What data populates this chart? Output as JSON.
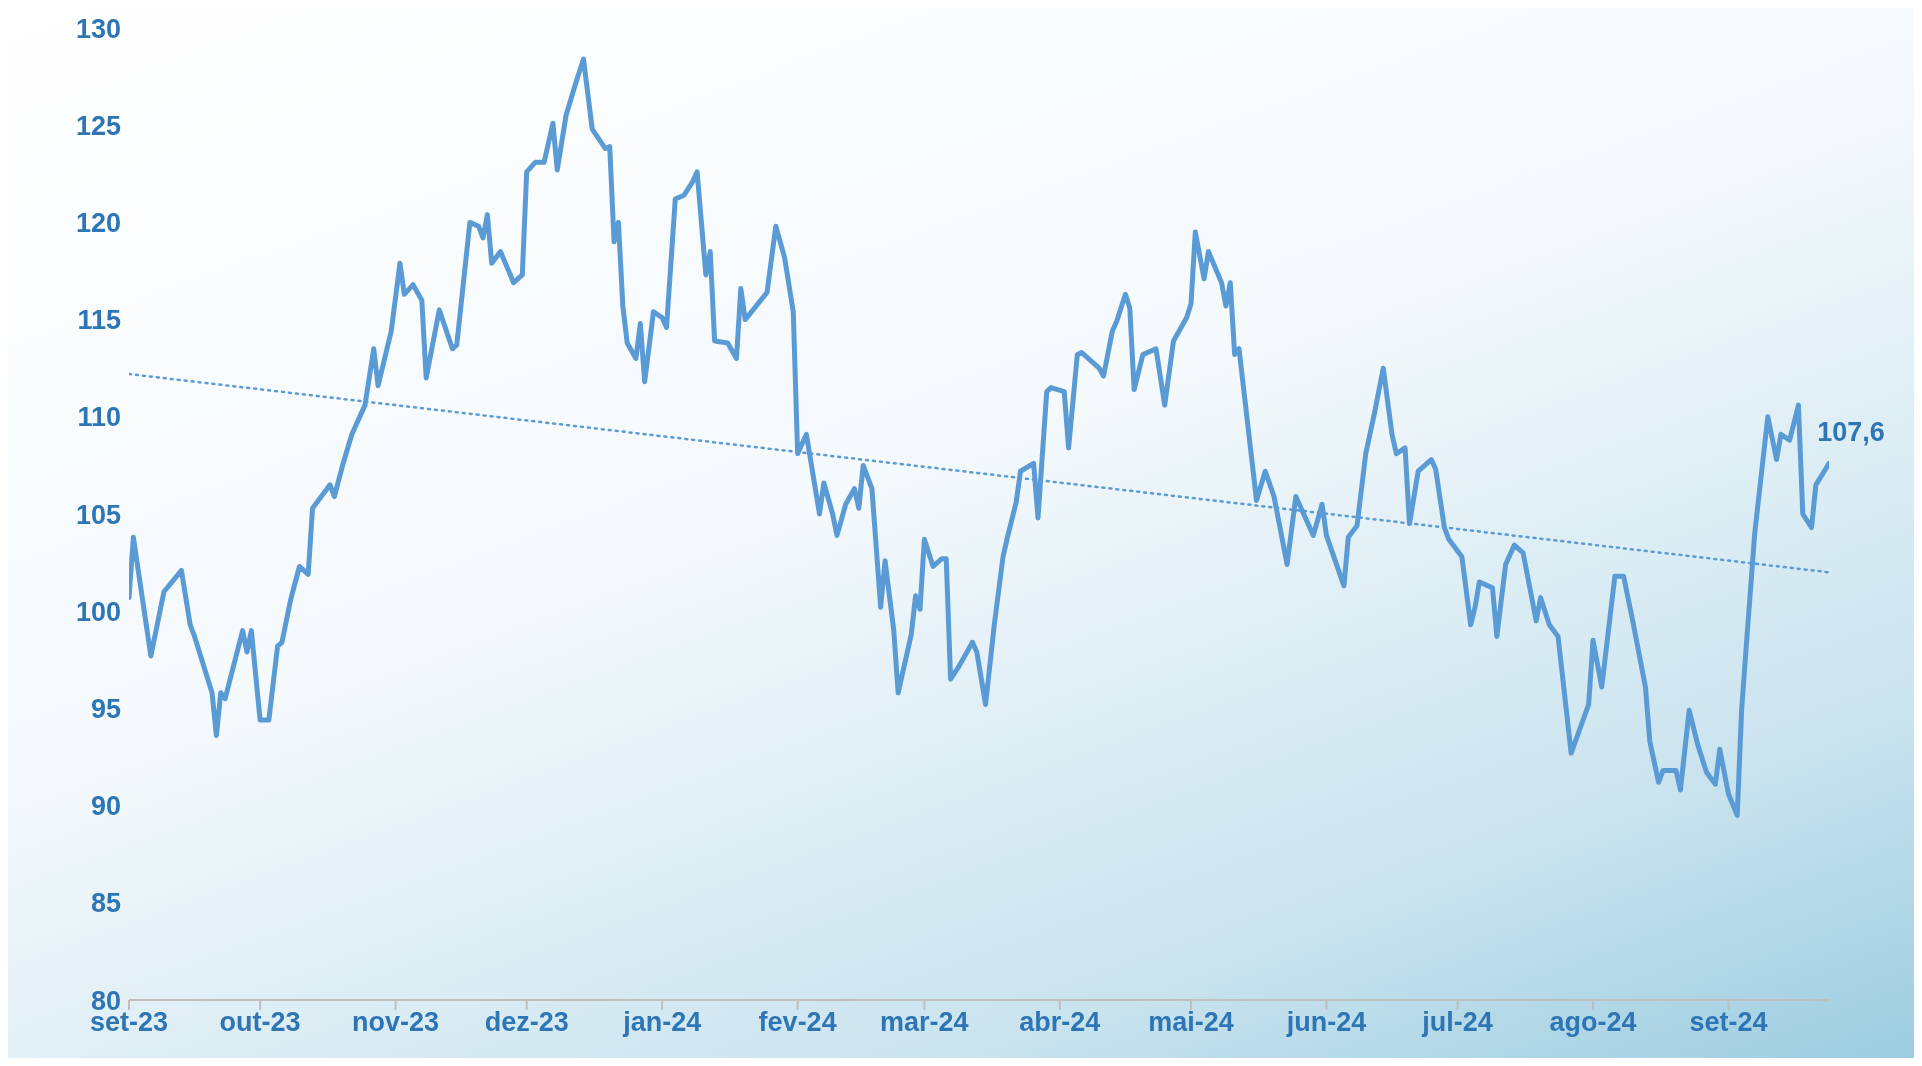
{
  "chart_data": {
    "type": "line",
    "marker": "none",
    "xlim": [
      "2023-09-01",
      "2024-09-24"
    ],
    "xticks": [
      {
        "value": "2023-09-01",
        "label": "set-23"
      },
      {
        "value": "2023-10-01",
        "label": "out-23"
      },
      {
        "value": "2023-11-01",
        "label": "nov-23"
      },
      {
        "value": "2023-12-01",
        "label": "dez-23"
      },
      {
        "value": "2024-01-01",
        "label": "jan-24"
      },
      {
        "value": "2024-02-01",
        "label": "fev-24"
      },
      {
        "value": "2024-03-01",
        "label": "mar-24"
      },
      {
        "value": "2024-04-01",
        "label": "abr-24"
      },
      {
        "value": "2024-05-01",
        "label": "mai-24"
      },
      {
        "value": "2024-06-01",
        "label": "jun-24"
      },
      {
        "value": "2024-07-01",
        "label": "jul-24"
      },
      {
        "value": "2024-08-01",
        "label": "ago-24"
      },
      {
        "value": "2024-09-01",
        "label": "set-24"
      }
    ],
    "ylim": [
      80,
      130
    ],
    "yticks": [
      80,
      85,
      90,
      95,
      100,
      105,
      110,
      115,
      120,
      125,
      130
    ],
    "annotations": [
      {
        "text": "107,6",
        "x": "2024-09-24",
        "y": 107.6
      }
    ],
    "series": [
      {
        "color": "#5b9bd5",
        "line_style": "solid",
        "x": [
          "2023-09-01",
          "2023-09-02",
          "2023-09-06",
          "2023-09-09",
          "2023-09-13",
          "2023-09-15",
          "2023-09-16",
          "2023-09-20",
          "2023-09-21",
          "2023-09-22",
          "2023-09-23",
          "2023-09-27",
          "2023-09-28",
          "2023-09-29",
          "2023-10-01",
          "2023-10-03",
          "2023-10-05",
          "2023-10-06",
          "2023-10-08",
          "2023-10-10",
          "2023-10-12",
          "2023-10-13",
          "2023-10-17",
          "2023-10-18",
          "2023-10-20",
          "2023-10-22",
          "2023-10-25",
          "2023-10-27",
          "2023-10-28",
          "2023-10-31",
          "2023-11-02",
          "2023-11-03",
          "2023-11-05",
          "2023-11-07",
          "2023-11-08",
          "2023-11-11",
          "2023-11-14",
          "2023-11-15",
          "2023-11-18",
          "2023-11-20",
          "2023-11-21",
          "2023-11-22",
          "2023-11-23",
          "2023-11-25",
          "2023-11-28",
          "2023-11-30",
          "2023-12-01",
          "2023-12-03",
          "2023-12-05",
          "2023-12-07",
          "2023-12-08",
          "2023-12-10",
          "2023-12-12",
          "2023-12-14",
          "2023-12-16",
          "2023-12-19",
          "2023-12-20",
          "2023-12-21",
          "2023-12-22",
          "2023-12-23",
          "2023-12-24",
          "2023-12-26",
          "2023-12-27",
          "2023-12-28",
          "2023-12-30",
          "2024-01-01",
          "2024-01-02",
          "2024-01-04",
          "2024-01-06",
          "2024-01-08",
          "2024-01-09",
          "2024-01-11",
          "2024-01-12",
          "2024-01-13",
          "2024-01-16",
          "2024-01-18",
          "2024-01-19",
          "2024-01-20",
          "2024-01-25",
          "2024-01-27",
          "2024-01-29",
          "2024-01-31",
          "2024-02-01",
          "2024-02-03",
          "2024-02-06",
          "2024-02-07",
          "2024-02-09",
          "2024-02-10",
          "2024-02-12",
          "2024-02-14",
          "2024-02-15",
          "2024-02-16",
          "2024-02-18",
          "2024-02-20",
          "2024-02-21",
          "2024-02-23",
          "2024-02-24",
          "2024-02-27",
          "2024-02-28",
          "2024-02-29",
          "2024-03-01",
          "2024-03-03",
          "2024-03-05",
          "2024-03-06",
          "2024-03-07",
          "2024-03-09",
          "2024-03-12",
          "2024-03-13",
          "2024-03-15",
          "2024-03-17",
          "2024-03-19",
          "2024-03-20",
          "2024-03-22",
          "2024-03-23",
          "2024-03-26",
          "2024-03-27",
          "2024-03-29",
          "2024-03-30",
          "2024-04-02",
          "2024-04-03",
          "2024-04-05",
          "2024-04-06",
          "2024-04-10",
          "2024-04-11",
          "2024-04-13",
          "2024-04-14",
          "2024-04-16",
          "2024-04-17",
          "2024-04-18",
          "2024-04-20",
          "2024-04-23",
          "2024-04-25",
          "2024-04-27",
          "2024-04-30",
          "2024-05-01",
          "2024-05-02",
          "2024-05-04",
          "2024-05-05",
          "2024-05-08",
          "2024-05-09",
          "2024-05-10",
          "2024-05-11",
          "2024-05-12",
          "2024-05-16",
          "2024-05-18",
          "2024-05-20",
          "2024-05-23",
          "2024-05-25",
          "2024-05-27",
          "2024-05-29",
          "2024-05-31",
          "2024-06-01",
          "2024-06-05",
          "2024-06-06",
          "2024-06-08",
          "2024-06-10",
          "2024-06-12",
          "2024-06-14",
          "2024-06-16",
          "2024-06-17",
          "2024-06-19",
          "2024-06-20",
          "2024-06-22",
          "2024-06-25",
          "2024-06-26",
          "2024-06-28",
          "2024-06-29",
          "2024-07-02",
          "2024-07-04",
          "2024-07-05",
          "2024-07-06",
          "2024-07-09",
          "2024-07-10",
          "2024-07-12",
          "2024-07-14",
          "2024-07-16",
          "2024-07-19",
          "2024-07-20",
          "2024-07-22",
          "2024-07-24",
          "2024-07-27",
          "2024-07-31",
          "2024-08-01",
          "2024-08-03",
          "2024-08-06",
          "2024-08-08",
          "2024-08-10",
          "2024-08-13",
          "2024-08-14",
          "2024-08-16",
          "2024-08-17",
          "2024-08-20",
          "2024-08-21",
          "2024-08-23",
          "2024-08-25",
          "2024-08-27",
          "2024-08-29",
          "2024-08-30",
          "2024-09-01",
          "2024-09-03",
          "2024-09-04",
          "2024-09-05",
          "2024-09-07",
          "2024-09-10",
          "2024-09-12",
          "2024-09-13",
          "2024-09-15",
          "2024-09-17",
          "2024-09-18",
          "2024-09-20",
          "2024-09-21",
          "2024-09-24"
        ],
        "values": [
          100.7,
          103.8,
          97.7,
          101.0,
          102.1,
          99.3,
          98.7,
          95.8,
          93.6,
          95.8,
          95.5,
          99.0,
          97.9,
          99.0,
          94.4,
          94.4,
          98.2,
          98.4,
          100.6,
          102.3,
          101.9,
          105.3,
          106.5,
          105.9,
          107.6,
          109.1,
          110.6,
          113.5,
          111.6,
          114.4,
          117.9,
          116.3,
          116.8,
          116.0,
          112.0,
          115.5,
          113.5,
          113.7,
          120.0,
          119.8,
          119.2,
          120.4,
          117.9,
          118.5,
          116.9,
          117.3,
          122.6,
          123.1,
          123.1,
          125.1,
          122.7,
          125.5,
          127.0,
          128.4,
          124.8,
          123.8,
          123.9,
          119.0,
          120.0,
          115.7,
          113.8,
          113.0,
          114.8,
          111.8,
          115.4,
          115.1,
          114.6,
          121.2,
          121.4,
          122.1,
          122.6,
          117.3,
          118.5,
          113.9,
          113.8,
          113.0,
          116.6,
          115.0,
          116.4,
          119.8,
          118.2,
          115.4,
          108.1,
          109.1,
          105.0,
          106.6,
          105.0,
          103.9,
          105.5,
          106.3,
          105.3,
          107.5,
          106.3,
          100.2,
          102.6,
          99.0,
          95.8,
          98.8,
          100.8,
          100.1,
          103.7,
          102.3,
          102.7,
          102.7,
          96.5,
          97.2,
          98.4,
          97.9,
          95.2,
          99.3,
          102.8,
          103.8,
          105.6,
          107.2,
          107.6,
          104.8,
          111.3,
          111.5,
          111.3,
          108.4,
          113.2,
          113.3,
          112.5,
          112.1,
          114.4,
          114.9,
          116.3,
          115.6,
          111.4,
          113.2,
          113.5,
          110.6,
          113.9,
          115.1,
          115.8,
          119.5,
          117.1,
          118.5,
          116.9,
          115.7,
          116.9,
          113.2,
          113.5,
          105.7,
          107.2,
          105.9,
          102.4,
          105.9,
          104.9,
          103.9,
          105.5,
          103.9,
          101.3,
          103.8,
          104.4,
          108.1,
          110.2,
          112.5,
          109.1,
          108.1,
          108.4,
          104.5,
          107.2,
          107.8,
          107.3,
          104.3,
          103.7,
          102.8,
          99.3,
          100.2,
          101.5,
          101.2,
          98.7,
          102.4,
          103.4,
          103.0,
          99.5,
          100.7,
          99.3,
          98.7,
          92.7,
          95.2,
          98.5,
          96.1,
          101.8,
          101.8,
          99.6,
          96.1,
          93.3,
          91.2,
          91.8,
          91.8,
          90.8,
          94.9,
          93.1,
          91.7,
          91.1,
          92.9,
          90.6,
          89.5,
          94.9,
          98.0,
          104.0,
          110.0,
          107.8,
          109.1,
          108.8,
          110.6,
          105.0,
          104.3,
          106.5,
          107.6
        ]
      },
      {
        "type": "line",
        "color": "#5b9bd5",
        "line_style": "dotted",
        "x": [
          "2023-09-01",
          "2024-09-24"
        ],
        "values": [
          112.2,
          102.0
        ]
      }
    ]
  }
}
